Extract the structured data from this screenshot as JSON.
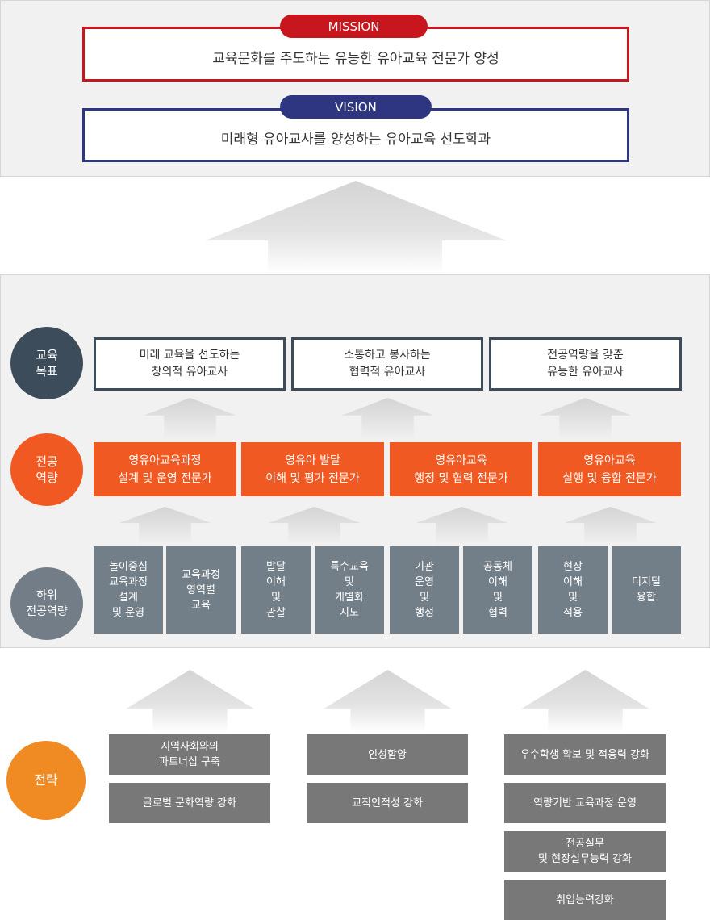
{
  "colors": {
    "mission": "#c8161e",
    "vision": "#2e3581",
    "goal": "#3d4c5a",
    "competency": "#f05a22",
    "sub": "#737f88",
    "strategy_circle": "#f08a22",
    "strategy_box": "#787878"
  },
  "mission": {
    "label": "MISSION",
    "text": "교육문화를 주도하는 유능한 유아교육 전문가 양성"
  },
  "vision": {
    "label": "VISION",
    "text": "미래형 유아교사를 양성하는 유아교육 선도학과"
  },
  "goals": {
    "label": "교육\n목표",
    "items": [
      "미래 교육을 선도하는\n창의적 유아교사",
      "소통하고 봉사하는\n협력적 유아교사",
      "전공역량을 갖춘\n유능한 유아교사"
    ]
  },
  "competencies": {
    "label": "전공\n역량",
    "items": [
      "영유아교육과정\n설계 및 운영 전문가",
      "영유아 발달\n이해 및 평가 전문가",
      "영유아교육\n행정 및 협력 전문가",
      "영유아교육\n실행 및 융합 전문가"
    ]
  },
  "sub_competencies": {
    "label": "하위\n전공역량",
    "items": [
      "놀이중심\n교육과정\n설계\n및 운영",
      "교육과정\n영역별\n교육",
      "발달\n이해\n및\n관찰",
      "특수교육\n및\n개별화\n지도",
      "기관\n운영\n및\n행정",
      "공동체\n이해\n및\n협력",
      "현장\n이해\n및\n적용",
      "디지털\n융합"
    ]
  },
  "strategy": {
    "label": "전략",
    "columns": [
      [
        "지역사회와의\n파트너십 구축",
        "글로벌 문화역량 강화"
      ],
      [
        "인성함양",
        "교직인적성 강화"
      ],
      [
        "우수학생 확보  및 적응력 강화",
        "역량기반 교육과정 운영",
        "전공실무\n및 현장실무능력 강화",
        "취업능력강화"
      ]
    ]
  }
}
